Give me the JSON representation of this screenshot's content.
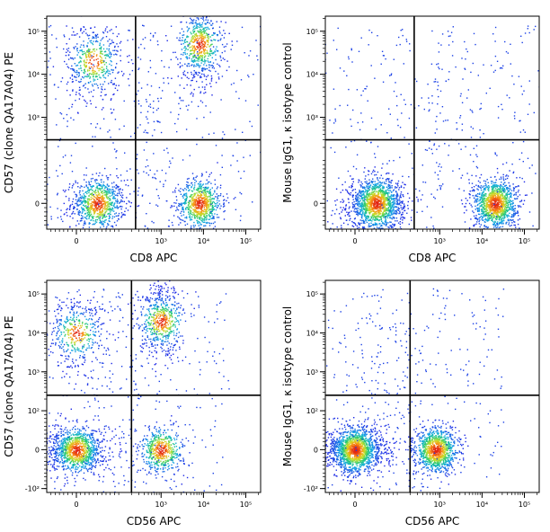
{
  "chart_data": [
    {
      "type": "scatter",
      "plot": "top-left",
      "xlabel": "CD8 APC",
      "ylabel": "CD57 (clone QA17A04) PE",
      "x_ticks": [
        "0",
        "10³",
        "10⁴",
        "10⁵"
      ],
      "y_ticks": [
        "0",
        "10³",
        "10⁴",
        "10⁵"
      ],
      "gate": {
        "x": 250,
        "y": 300
      },
      "populations": [
        {
          "name": "CD8-CD57-",
          "x": 50,
          "y": 0,
          "share": 0.3
        },
        {
          "name": "CD8+CD57-",
          "x": 8000,
          "y": 0,
          "share": 0.28
        },
        {
          "name": "CD8-CD57+",
          "x": 40,
          "y": 20000,
          "share": 0.18
        },
        {
          "name": "CD8+CD57+",
          "x": 8000,
          "y": 50000,
          "share": 0.24
        }
      ]
    },
    {
      "type": "scatter",
      "plot": "top-right",
      "xlabel": "CD8 APC",
      "ylabel": "Mouse IgG1, κ isotype control",
      "x_ticks": [
        "0",
        "10³",
        "10⁴",
        "10⁵"
      ],
      "y_ticks": [
        "0",
        "10³",
        "10⁴",
        "10⁵"
      ],
      "gate": {
        "x": 250,
        "y": 300
      },
      "populations": [
        {
          "name": "CD8-",
          "x": 50,
          "y": 0,
          "share": 0.55
        },
        {
          "name": "CD8+",
          "x": 20000,
          "y": 0,
          "share": 0.45
        }
      ]
    },
    {
      "type": "scatter",
      "plot": "bottom-left",
      "xlabel": "CD56 APC",
      "ylabel": "CD57 (clone QA17A04) PE",
      "x_ticks": [
        "0",
        "10³",
        "10⁴",
        "10⁵"
      ],
      "y_ticks": [
        "-10²",
        "0",
        "10²",
        "10³",
        "10⁴",
        "10⁵"
      ],
      "gate": {
        "x": 200,
        "y": 250
      },
      "populations": [
        {
          "name": "CD56-CD57-",
          "x": 0,
          "y": 0,
          "share": 0.42
        },
        {
          "name": "CD56+CD57-",
          "x": 1000,
          "y": 0,
          "share": 0.2
        },
        {
          "name": "CD56-CD57+",
          "x": 0,
          "y": 10000,
          "share": 0.16
        },
        {
          "name": "CD56+CD57+",
          "x": 1000,
          "y": 20000,
          "share": 0.22
        }
      ]
    },
    {
      "type": "scatter",
      "plot": "bottom-right",
      "xlabel": "CD56 APC",
      "ylabel": "Mouse IgG1, κ isotype control",
      "x_ticks": [
        "0",
        "10³",
        "10⁴",
        "10⁵"
      ],
      "y_ticks": [
        "-10²",
        "0",
        "10²",
        "10³",
        "10⁴",
        "10⁵"
      ],
      "gate": {
        "x": 200,
        "y": 250
      },
      "populations": [
        {
          "name": "CD56-",
          "x": 0,
          "y": 0,
          "share": 0.6
        },
        {
          "name": "CD56+",
          "x": 800,
          "y": 0,
          "share": 0.4
        }
      ]
    }
  ]
}
